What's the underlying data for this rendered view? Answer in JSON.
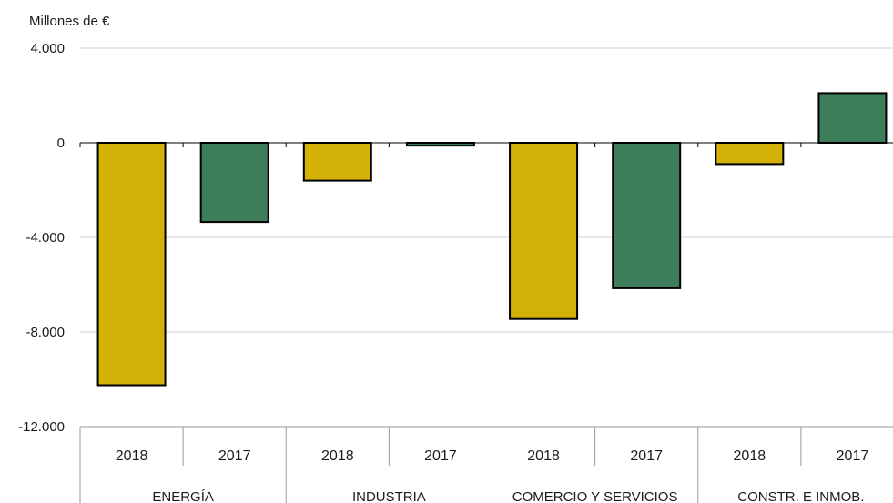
{
  "chart_data": {
    "type": "bar",
    "unit_label": "Millones de €",
    "groups": [
      {
        "name": "ENERGÍA",
        "years": [
          "2018",
          "2017"
        ],
        "values": [
          -10250,
          -3350
        ]
      },
      {
        "name": "INDUSTRIA",
        "years": [
          "2018",
          "2017"
        ],
        "values": [
          -1600,
          -120
        ]
      },
      {
        "name": "COMERCIO Y SERVICIOS",
        "years": [
          "2018",
          "2017"
        ],
        "values": [
          -7450,
          -6150
        ]
      },
      {
        "name": "CONSTR. E INMOB.",
        "years": [
          "2018",
          "2017"
        ],
        "values": [
          -900,
          2100
        ]
      }
    ],
    "year_colors": {
      "2018": "#d4b106",
      "2017": "#3d7d59"
    },
    "yticks": [
      4000,
      0,
      -4000,
      -8000,
      -12000
    ],
    "ytick_labels": [
      "4.000",
      "0",
      "-4.000",
      "-8.000",
      "-12.000"
    ],
    "ylim": [
      -12000,
      4000
    ],
    "grid": true,
    "legend": "none"
  }
}
